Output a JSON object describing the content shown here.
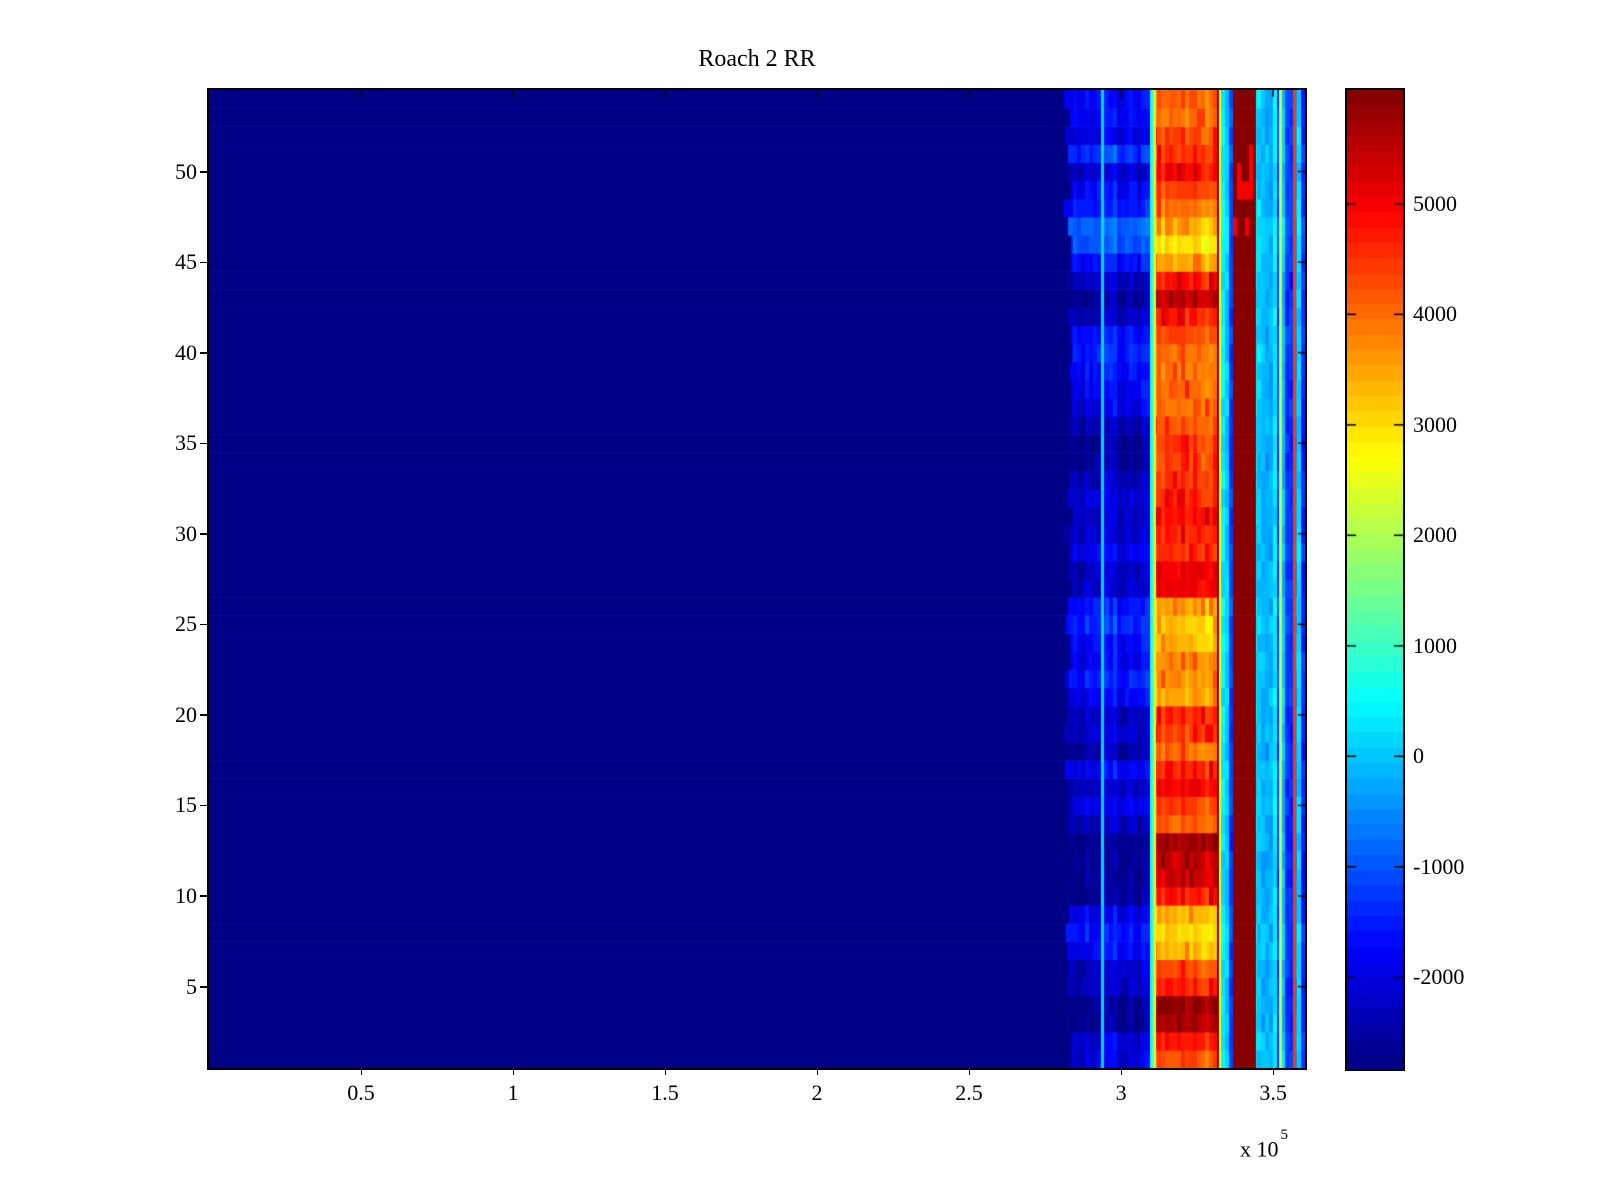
{
  "title": "Roach 2 RR",
  "axes": {
    "x_exponent_prefix": "x 10",
    "x_exponent_power": "5",
    "x_ticks": [
      {
        "label": "0.5",
        "value": 50000
      },
      {
        "label": "1",
        "value": 100000
      },
      {
        "label": "1.5",
        "value": 150000
      },
      {
        "label": "2",
        "value": 200000
      },
      {
        "label": "2.5",
        "value": 250000
      },
      {
        "label": "3",
        "value": 300000
      },
      {
        "label": "3.5",
        "value": 350000
      }
    ],
    "y_ticks": [
      {
        "label": "5",
        "value": 5
      },
      {
        "label": "10",
        "value": 10
      },
      {
        "label": "15",
        "value": 15
      },
      {
        "label": "20",
        "value": 20
      },
      {
        "label": "25",
        "value": 25
      },
      {
        "label": "30",
        "value": 30
      },
      {
        "label": "35",
        "value": 35
      },
      {
        "label": "40",
        "value": 40
      },
      {
        "label": "45",
        "value": 45
      },
      {
        "label": "50",
        "value": 50
      }
    ]
  },
  "colorbar": {
    "colormap": "jet",
    "levels": 64,
    "vmin": -2830,
    "vmax": 6030,
    "ticks": [
      {
        "label": "5000",
        "value": 5000
      },
      {
        "label": "4000",
        "value": 4000
      },
      {
        "label": "3000",
        "value": 3000
      },
      {
        "label": "2000",
        "value": 2000
      },
      {
        "label": "1000",
        "value": 1000
      },
      {
        "label": "0",
        "value": 0
      },
      {
        "label": "-1000",
        "value": -1000
      },
      {
        "label": "-2000",
        "value": -2000
      }
    ]
  },
  "chart_data": {
    "type": "heatmap",
    "title": "Roach 2 RR",
    "colormap": "jet",
    "n_rows": 54,
    "x_range": [
      0,
      360500
    ],
    "x_unit_exponent": 5,
    "y_range": [
      0.5,
      54.5
    ],
    "value_range": [
      -2830,
      6030
    ],
    "grid": false,
    "legend": "colorbar-right",
    "bands": [
      {
        "kind": "solid",
        "x0": 0,
        "x1": 281000,
        "value": -2830
      },
      {
        "kind": "rows-blue",
        "x0": 281000,
        "x1": 309500,
        "noise": 300
      },
      {
        "kind": "solid",
        "x0": 309500,
        "x1": 310500,
        "value": 700
      },
      {
        "kind": "solid",
        "x0": 310500,
        "x1": 311500,
        "value": 2300
      },
      {
        "kind": "rows-orange",
        "x0": 311500,
        "x1": 332200,
        "noise": 250
      },
      {
        "kind": "solid",
        "x0": 332200,
        "x1": 332800,
        "value": 2600
      },
      {
        "kind": "cyan-stripes",
        "x0": 332800,
        "x1": 336800,
        "value": 100,
        "noise": 400
      },
      {
        "kind": "max-solid",
        "x0": 336800,
        "x1": 344400,
        "value": 6030
      },
      {
        "kind": "cyan-stripes",
        "x0": 344400,
        "x1": 360500,
        "value": 0,
        "noise": 500
      }
    ],
    "vertical_lines": [
      {
        "x": 293800,
        "width": 3,
        "value": 100
      },
      {
        "x": 331900,
        "width": 2,
        "value": 5900
      },
      {
        "x": 352500,
        "width": 3,
        "value": 2100
      },
      {
        "x": 357000,
        "width": 3,
        "value": 4400
      }
    ],
    "row_values_blue": [
      -1900,
      -2000,
      -2500,
      -2600,
      -2200,
      -2100,
      -1700,
      -1500,
      -1800,
      -2500,
      -2600,
      -2600,
      -2650,
      -2200,
      -1900,
      -2100,
      -1700,
      -2400,
      -2100,
      -2200,
      -1700,
      -1400,
      -1700,
      -1600,
      -1300,
      -1500,
      -2100,
      -2200,
      -1700,
      -2100,
      -2200,
      -2000,
      -2200,
      -2500,
      -2500,
      -2300,
      -1900,
      -1700,
      -1600,
      -1400,
      -1600,
      -2200,
      -2500,
      -2200,
      -1500,
      -900,
      -800,
      -1400,
      -1600,
      -2100,
      -1200,
      -1900,
      -1700,
      -1700
    ],
    "row_values_orange": [
      4200,
      4600,
      5600,
      5800,
      4500,
      4200,
      3200,
      3000,
      3300,
      4700,
      5200,
      5300,
      5600,
      4000,
      4300,
      4900,
      4600,
      3900,
      4300,
      4500,
      3400,
      3600,
      3700,
      3200,
      3100,
      3400,
      4900,
      5000,
      4400,
      4600,
      4800,
      4500,
      4400,
      4200,
      4400,
      4100,
      3900,
      4000,
      3800,
      3900,
      4200,
      4600,
      5400,
      4700,
      3400,
      2800,
      3300,
      3900,
      4300,
      4800,
      4500,
      4200,
      3800,
      4000
    ],
    "maroon_red_stripe_rows": [
      47,
      51
    ],
    "background_color": "#ffffff",
    "min_color": "#000080",
    "max_color": "#800000"
  }
}
